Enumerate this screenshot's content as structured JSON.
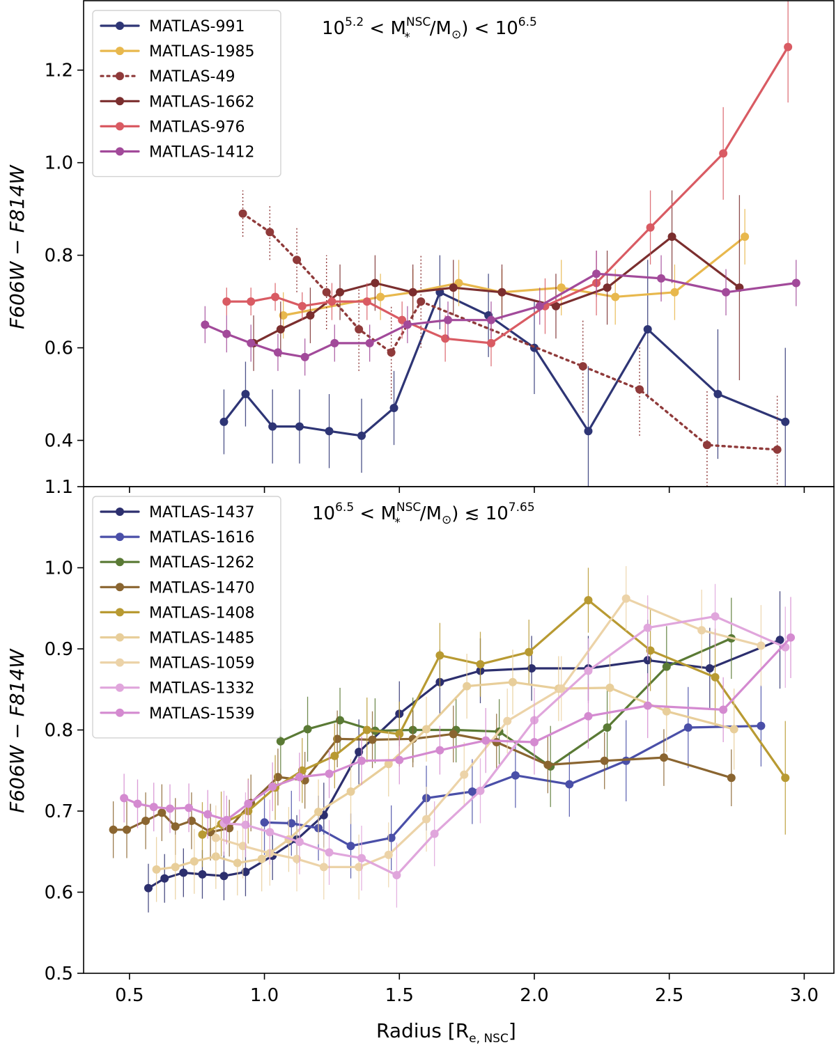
{
  "chart_data": [
    {
      "type": "line",
      "panel": "top",
      "annotation": {
        "base1": "10",
        "exp1": "5.2",
        "mid": " < M",
        "sup": "NSC",
        "sub": "*",
        "tail": "/M",
        "sun_sub": "⊙",
        "end": ") < 10",
        "exp2": "6.5"
      },
      "ylabel": "F606W − F814W",
      "ylim": [
        0.3,
        1.35
      ],
      "yticks": [
        0.4,
        0.6,
        0.8,
        1.0,
        1.2
      ],
      "ytick_labels": [
        "0.4",
        "0.6",
        "0.8",
        "1.0",
        "1.2"
      ],
      "xlim": [
        0.33,
        3.11
      ],
      "grid": false,
      "legend_position": "top-left",
      "series": [
        {
          "name": "MATLAS-991",
          "color": "#2e3575",
          "style": "solid",
          "x": [
            0.85,
            0.93,
            1.03,
            1.13,
            1.24,
            1.36,
            1.48,
            1.65,
            1.83,
            2.0,
            2.2,
            2.42,
            2.68,
            2.93
          ],
          "y": [
            0.44,
            0.5,
            0.43,
            0.43,
            0.42,
            0.41,
            0.47,
            0.72,
            0.67,
            0.6,
            0.42,
            0.64,
            0.5,
            0.44
          ],
          "err": [
            0.07,
            0.07,
            0.08,
            0.08,
            0.08,
            0.08,
            0.08,
            0.08,
            0.09,
            0.1,
            0.14,
            0.15,
            0.14,
            0.16
          ]
        },
        {
          "name": "MATLAS-1985",
          "color": "#e8b84d",
          "style": "solid",
          "x": [
            1.07,
            1.43,
            1.55,
            1.72,
            1.88,
            2.1,
            2.3,
            2.52,
            2.78
          ],
          "y": [
            0.67,
            0.71,
            0.72,
            0.74,
            0.72,
            0.73,
            0.71,
            0.72,
            0.84
          ],
          "err": [
            0.05,
            0.05,
            0.05,
            0.05,
            0.05,
            0.06,
            0.06,
            0.06,
            0.06
          ]
        },
        {
          "name": "MATLAS-49",
          "color": "#8f3a3a",
          "style": "dotted",
          "x": [
            0.92,
            1.02,
            1.12,
            1.23,
            1.35,
            1.47,
            1.58,
            2.18,
            2.39,
            2.64,
            2.9
          ],
          "y": [
            0.89,
            0.85,
            0.79,
            0.72,
            0.64,
            0.59,
            0.7,
            0.56,
            0.51,
            0.39,
            0.38
          ],
          "err": [
            0.05,
            0.06,
            0.07,
            0.08,
            0.09,
            0.1,
            0.1,
            0.1,
            0.1,
            0.12,
            0.12
          ]
        },
        {
          "name": "MATLAS-1662",
          "color": "#7b2e2e",
          "style": "solid",
          "x": [
            0.96,
            1.06,
            1.17,
            1.28,
            1.41,
            1.55,
            1.7,
            1.88,
            2.08,
            2.27,
            2.51,
            2.76
          ],
          "y": [
            0.61,
            0.64,
            0.67,
            0.72,
            0.74,
            0.72,
            0.73,
            0.72,
            0.69,
            0.73,
            0.84,
            0.73
          ],
          "err": [
            0.06,
            0.06,
            0.06,
            0.06,
            0.06,
            0.06,
            0.06,
            0.06,
            0.07,
            0.08,
            0.1,
            0.2
          ]
        },
        {
          "name": "MATLAS-976",
          "color": "#d95b63",
          "style": "solid",
          "x": [
            0.86,
            0.95,
            1.04,
            1.14,
            1.25,
            1.38,
            1.51,
            1.67,
            1.84,
            2.04,
            2.23,
            2.43,
            2.7,
            2.94
          ],
          "y": [
            0.7,
            0.7,
            0.71,
            0.69,
            0.7,
            0.7,
            0.66,
            0.62,
            0.61,
            0.69,
            0.74,
            0.86,
            1.02,
            1.25
          ],
          "err": [
            0.03,
            0.03,
            0.03,
            0.03,
            0.04,
            0.04,
            0.04,
            0.05,
            0.05,
            0.06,
            0.07,
            0.08,
            0.1,
            0.12
          ]
        },
        {
          "name": "MATLAS-1412",
          "color": "#a24a9a",
          "style": "solid",
          "x": [
            0.78,
            0.86,
            0.95,
            1.05,
            1.15,
            1.26,
            1.39,
            1.53,
            1.68,
            1.84,
            2.02,
            2.23,
            2.47,
            2.71,
            2.97
          ],
          "y": [
            0.65,
            0.63,
            0.61,
            0.59,
            0.58,
            0.61,
            0.61,
            0.65,
            0.66,
            0.66,
            0.69,
            0.76,
            0.75,
            0.72,
            0.74
          ],
          "err": [
            0.04,
            0.04,
            0.04,
            0.04,
            0.04,
            0.04,
            0.04,
            0.04,
            0.04,
            0.04,
            0.04,
            0.05,
            0.05,
            0.05,
            0.05
          ]
        }
      ]
    },
    {
      "type": "line",
      "panel": "bottom",
      "annotation": {
        "base1": "10",
        "exp1": "6.5",
        "mid": " < M",
        "sup": "NSC",
        "sub": "*",
        "tail": "/M",
        "sun_sub": "⊙",
        "end": ") ≲ 10",
        "exp2": "7.65"
      },
      "ylabel": "F606W − F814W",
      "xlabel_main": "Radius [R",
      "xlabel_sub": "e, NSC",
      "xlabel_end": "]",
      "ylim": [
        0.5,
        1.1
      ],
      "yticks": [
        0.5,
        0.6,
        0.7,
        0.8,
        0.9,
        1.0,
        1.1
      ],
      "ytick_labels": [
        "0.5",
        "0.6",
        "0.7",
        "0.8",
        "0.9",
        "1.0",
        "1.1"
      ],
      "xlim": [
        0.33,
        3.11
      ],
      "xticks": [
        0.5,
        1.0,
        1.5,
        2.0,
        2.5,
        3.0
      ],
      "xtick_labels": [
        "0.5",
        "1.0",
        "1.5",
        "2.0",
        "2.5",
        "3.0"
      ],
      "grid": false,
      "legend_position": "top-left",
      "series": [
        {
          "name": "MATLAS-1437",
          "color": "#2c2f6e",
          "style": "solid",
          "x": [
            0.57,
            0.63,
            0.7,
            0.77,
            0.85,
            0.93,
            1.03,
            1.12,
            1.22,
            1.35,
            1.5,
            1.65,
            1.8,
            1.99,
            2.2,
            2.42,
            2.65,
            2.91
          ],
          "y": [
            0.605,
            0.617,
            0.624,
            0.622,
            0.62,
            0.625,
            0.645,
            0.665,
            0.695,
            0.773,
            0.82,
            0.859,
            0.873,
            0.876,
            0.876,
            0.886,
            0.876,
            0.911
          ],
          "err": [
            0.03,
            0.03,
            0.03,
            0.03,
            0.03,
            0.03,
            0.03,
            0.03,
            0.04,
            0.04,
            0.04,
            0.04,
            0.04,
            0.04,
            0.04,
            0.05,
            0.05,
            0.06
          ]
        },
        {
          "name": "MATLAS-1616",
          "color": "#4a4fa8",
          "style": "solid",
          "x": [
            1.0,
            1.1,
            1.2,
            1.32,
            1.47,
            1.6,
            1.77,
            1.93,
            2.13,
            2.34,
            2.57,
            2.84
          ],
          "y": [
            0.686,
            0.685,
            0.679,
            0.657,
            0.667,
            0.716,
            0.724,
            0.744,
            0.733,
            0.762,
            0.803,
            0.805
          ],
          "err": [
            0.04,
            0.04,
            0.04,
            0.04,
            0.04,
            0.04,
            0.04,
            0.04,
            0.04,
            0.05,
            0.05,
            0.05
          ]
        },
        {
          "name": "MATLAS-1262",
          "color": "#5a7a35",
          "style": "solid",
          "x": [
            1.06,
            1.16,
            1.28,
            1.41,
            1.55,
            1.71,
            1.87,
            2.06,
            2.27,
            2.49,
            2.73
          ],
          "y": [
            0.786,
            0.801,
            0.812,
            0.799,
            0.8,
            0.8,
            0.798,
            0.755,
            0.803,
            0.878,
            0.913
          ],
          "err": [
            0.04,
            0.04,
            0.04,
            0.04,
            0.04,
            0.04,
            0.04,
            0.05,
            0.05,
            0.05,
            0.05
          ]
        },
        {
          "name": "MATLAS-1470",
          "color": "#8a6530",
          "style": "solid",
          "x": [
            0.44,
            0.49,
            0.56,
            0.62,
            0.67,
            0.73,
            0.8,
            0.87,
            0.95,
            1.05,
            1.15,
            1.27,
            1.4,
            1.55,
            1.7,
            1.86,
            2.05,
            2.26,
            2.48,
            2.73
          ],
          "y": [
            0.677,
            0.677,
            0.688,
            0.698,
            0.681,
            0.688,
            0.674,
            0.679,
            0.71,
            0.742,
            0.738,
            0.789,
            0.788,
            0.789,
            0.795,
            0.785,
            0.757,
            0.762,
            0.766,
            0.741
          ],
          "err": [
            0.035,
            0.035,
            0.035,
            0.035,
            0.035,
            0.035,
            0.035,
            0.035,
            0.035,
            0.035,
            0.035,
            0.035,
            0.035,
            0.035,
            0.035,
            0.035,
            0.035,
            0.035,
            0.035,
            0.035
          ]
        },
        {
          "name": "MATLAS-1408",
          "color": "#b89a32",
          "style": "solid",
          "x": [
            0.77,
            0.84,
            0.94,
            1.04,
            1.14,
            1.26,
            1.38,
            1.5,
            1.65,
            1.8,
            1.98,
            2.2,
            2.43,
            2.67,
            2.93
          ],
          "y": [
            0.671,
            0.684,
            0.7,
            0.729,
            0.75,
            0.768,
            0.8,
            0.795,
            0.892,
            0.881,
            0.896,
            0.96,
            0.898,
            0.865,
            0.741
          ],
          "err": [
            0.04,
            0.04,
            0.04,
            0.04,
            0.04,
            0.04,
            0.04,
            0.04,
            0.04,
            0.04,
            0.04,
            0.04,
            0.05,
            0.06,
            0.07
          ]
        },
        {
          "name": "MATLAS-1485",
          "color": "#e8ce9a",
          "style": "solid",
          "x": [
            0.6,
            0.67,
            0.74,
            0.82,
            0.9,
            0.99,
            1.09,
            1.2,
            1.32,
            1.46,
            1.6,
            1.75,
            1.92,
            2.09,
            2.28,
            2.49,
            2.74
          ],
          "y": [
            0.628,
            0.631,
            0.638,
            0.644,
            0.636,
            0.641,
            0.665,
            0.699,
            0.724,
            0.758,
            0.801,
            0.854,
            0.859,
            0.851,
            0.852,
            0.823,
            0.801
          ],
          "err": [
            0.04,
            0.04,
            0.04,
            0.04,
            0.04,
            0.04,
            0.04,
            0.04,
            0.04,
            0.04,
            0.04,
            0.04,
            0.04,
            0.04,
            0.04,
            0.05,
            0.05
          ]
        },
        {
          "name": "MATLAS-1059",
          "color": "#ecd3a8",
          "style": "solid",
          "x": [
            0.82,
            0.92,
            1.02,
            1.12,
            1.22,
            1.35,
            1.46,
            1.6,
            1.74,
            1.9,
            2.1,
            2.34,
            2.62,
            2.84
          ],
          "y": [
            0.667,
            0.657,
            0.648,
            0.641,
            0.631,
            0.631,
            0.646,
            0.69,
            0.745,
            0.811,
            0.851,
            0.962,
            0.923,
            0.904
          ],
          "err": [
            0.04,
            0.04,
            0.04,
            0.04,
            0.04,
            0.04,
            0.04,
            0.04,
            0.04,
            0.04,
            0.04,
            0.04,
            0.05,
            0.05
          ]
        },
        {
          "name": "MATLAS-1332",
          "color": "#e0a6dc",
          "style": "solid",
          "x": [
            0.85,
            0.93,
            1.02,
            1.13,
            1.24,
            1.36,
            1.49,
            1.63,
            1.8,
            2.0,
            2.2,
            2.42,
            2.67,
            2.93
          ],
          "y": [
            0.685,
            0.683,
            0.674,
            0.662,
            0.649,
            0.642,
            0.621,
            0.672,
            0.725,
            0.812,
            0.873,
            0.926,
            0.94,
            0.902
          ],
          "err": [
            0.04,
            0.04,
            0.04,
            0.04,
            0.04,
            0.04,
            0.04,
            0.04,
            0.04,
            0.04,
            0.04,
            0.04,
            0.04,
            0.05
          ]
        },
        {
          "name": "MATLAS-1539",
          "color": "#d48ad0",
          "style": "solid",
          "x": [
            0.48,
            0.53,
            0.59,
            0.65,
            0.72,
            0.79,
            0.86,
            0.94,
            1.03,
            1.13,
            1.24,
            1.36,
            1.5,
            1.65,
            1.82,
            2.0,
            2.2,
            2.42,
            2.7,
            2.95
          ],
          "y": [
            0.716,
            0.709,
            0.705,
            0.703,
            0.704,
            0.696,
            0.689,
            0.709,
            0.73,
            0.742,
            0.746,
            0.762,
            0.763,
            0.775,
            0.787,
            0.785,
            0.817,
            0.83,
            0.825,
            0.914
          ],
          "err": [
            0.03,
            0.03,
            0.03,
            0.03,
            0.03,
            0.03,
            0.03,
            0.03,
            0.03,
            0.03,
            0.03,
            0.03,
            0.03,
            0.03,
            0.04,
            0.04,
            0.04,
            0.04,
            0.04,
            0.05
          ]
        }
      ]
    }
  ]
}
